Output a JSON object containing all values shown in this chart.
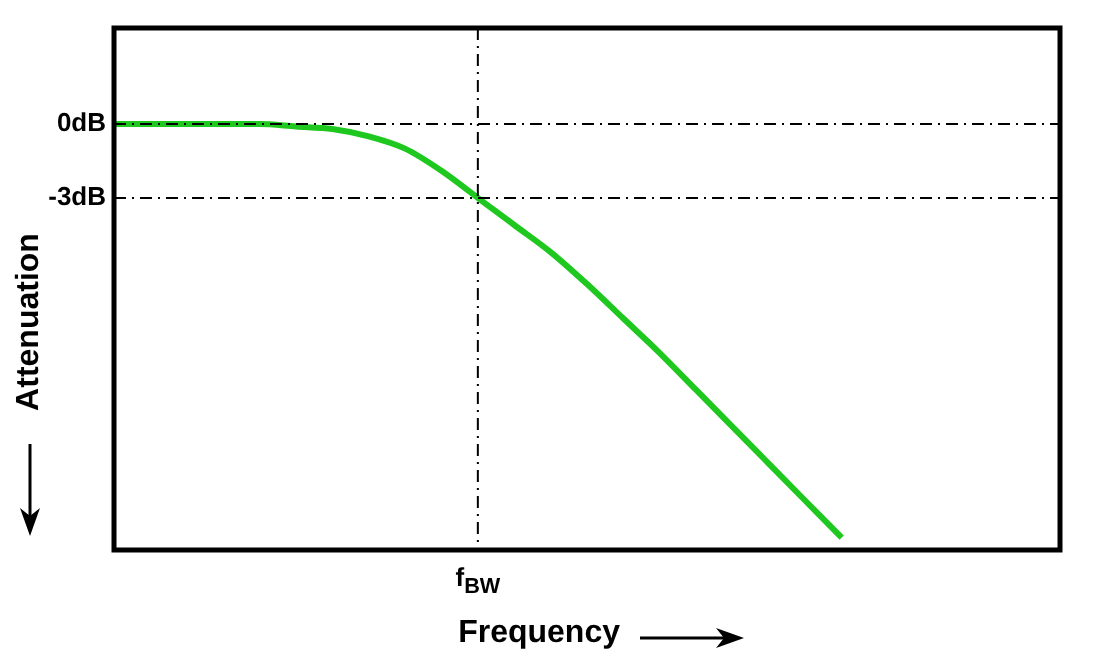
{
  "chart_data": {
    "type": "line",
    "xlabel": "Frequency",
    "ylabel": "Attenuation",
    "categories": [
      null,
      null,
      null,
      null,
      null,
      null,
      null,
      null,
      null,
      null,
      "f$_{BW}$",
      null,
      null,
      null,
      null,
      null,
      null,
      null,
      null,
      null,
      null,
      null,
      null,
      null,
      null,
      null,
      null
    ],
    "series": [
      {
        "color": "#1ec81e",
        "values": [
          0,
          0,
          0,
          0,
          0,
          -0.1,
          -0.2,
          -0.5,
          -1.0,
          -1.9,
          -3.0,
          -4.1,
          -5.2,
          -6.5,
          -7.9,
          -9.3,
          -10.8,
          -12.3,
          -13.8,
          -15.3,
          -16.8,
          null,
          null,
          null,
          null,
          null,
          null
        ]
      }
    ],
    "ylim": [
      -17.3,
      3.9
    ],
    "yticks": [
      {
        "value": 0,
        "label": "0dB"
      },
      {
        "value": -3,
        "label": "-3dB"
      }
    ],
    "ref_lines": [
      {
        "axis": "y",
        "value": 0,
        "line_style": "dashdot"
      },
      {
        "axis": "y",
        "value": -3,
        "line_style": "dashdot"
      },
      {
        "axis": "x",
        "value": "f$_{BW}$",
        "line_style": "dashdot"
      }
    ],
    "grid": false,
    "legend": false,
    "marker": "none",
    "line_style": "solid"
  }
}
